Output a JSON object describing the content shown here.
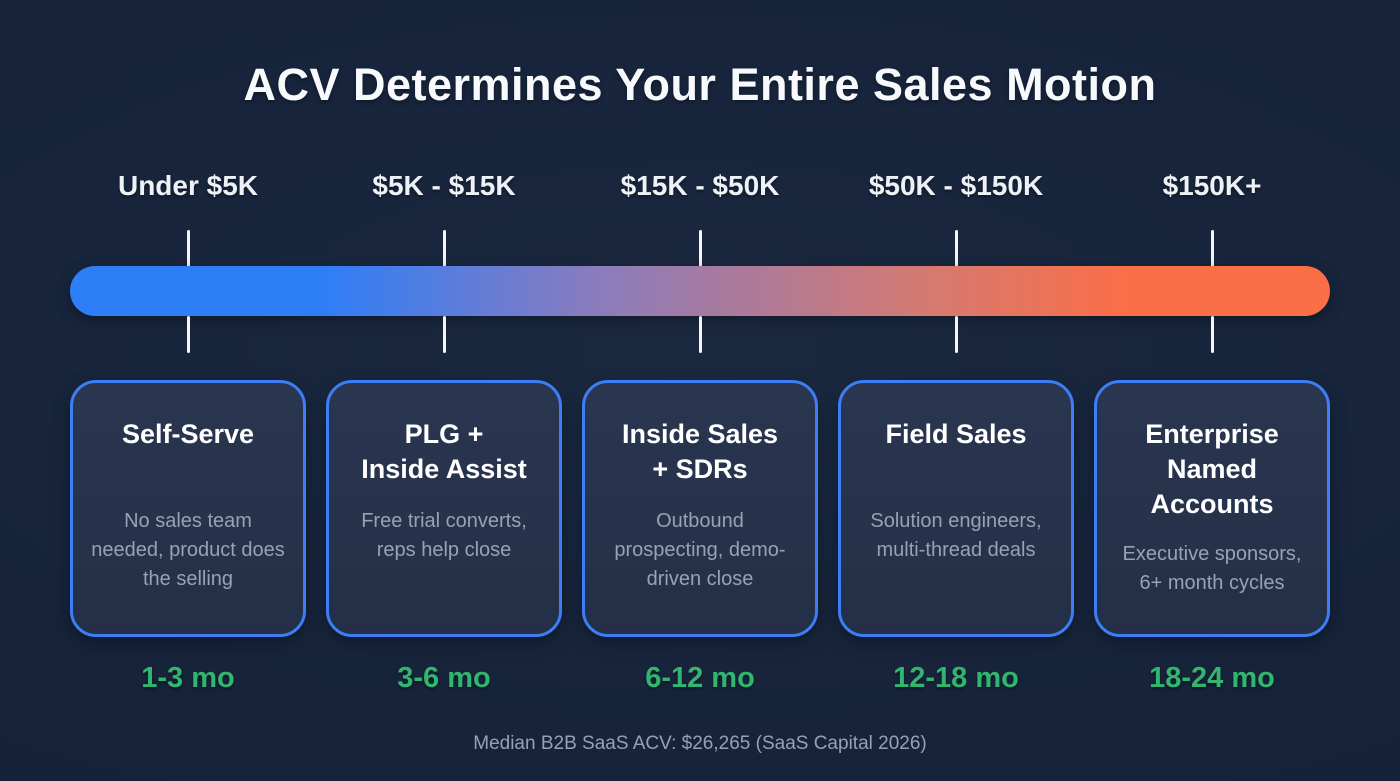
{
  "title": "ACV Determines Your Entire Sales Motion",
  "footnote": "Median B2B SaaS ACV: $26,265 (SaaS Capital 2026)",
  "colors": {
    "bar-start": "#2e7ef7",
    "bar-mid": "#a87a9e",
    "bar-end": "#fb6f47",
    "card-border": "#3d7ef5",
    "duration-green": "#32b56e",
    "background": "#16233a"
  },
  "segments": [
    {
      "range": "Under $5K",
      "motion": "Self-Serve",
      "description": "No sales team needed, product does the selling",
      "duration": "1-3 mo"
    },
    {
      "range": "$5K - $15K",
      "motion": "PLG +\nInside Assist",
      "description": "Free trial converts, reps help close",
      "duration": "3-6 mo"
    },
    {
      "range": "$15K - $50K",
      "motion": "Inside Sales\n+ SDRs",
      "description": "Outbound prospecting, demo-driven close",
      "duration": "6-12 mo"
    },
    {
      "range": "$50K - $150K",
      "motion": "Field Sales",
      "description": "Solution engineers, multi-thread deals",
      "duration": "12-18 mo"
    },
    {
      "range": "$150K+",
      "motion": "Enterprise\nNamed\nAccounts",
      "description": "Executive sponsors, 6+ month cycles",
      "duration": "18-24 mo"
    }
  ]
}
